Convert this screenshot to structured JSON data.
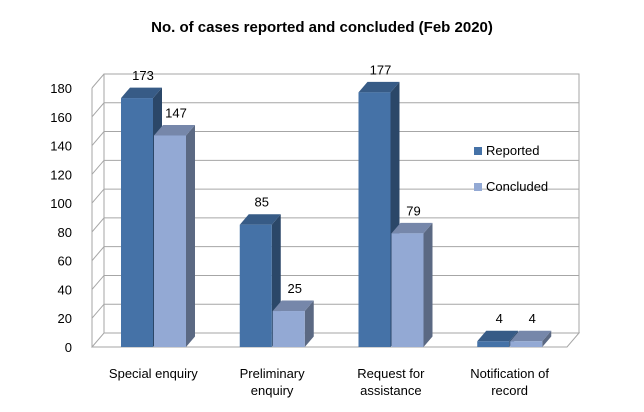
{
  "chart_data": {
    "type": "bar",
    "title": "No. of cases reported and concluded (Feb 2020)",
    "xlabel": "",
    "ylabel": "",
    "ylim": [
      0,
      180
    ],
    "yticks": [
      0,
      20,
      40,
      60,
      80,
      100,
      120,
      140,
      160,
      180
    ],
    "grid": true,
    "legend_position": "right",
    "categories": [
      [
        "Special enquiry"
      ],
      [
        "Preliminary",
        "enquiry"
      ],
      [
        "Request for",
        "assistance"
      ],
      [
        "Notification of",
        "record"
      ]
    ],
    "series": [
      {
        "name": "Reported",
        "values": [
          173,
          85,
          177,
          4
        ],
        "color": "#4572A7"
      },
      {
        "name": "Concluded",
        "values": [
          147,
          25,
          79,
          4
        ],
        "color": "#93A9D4"
      }
    ]
  }
}
